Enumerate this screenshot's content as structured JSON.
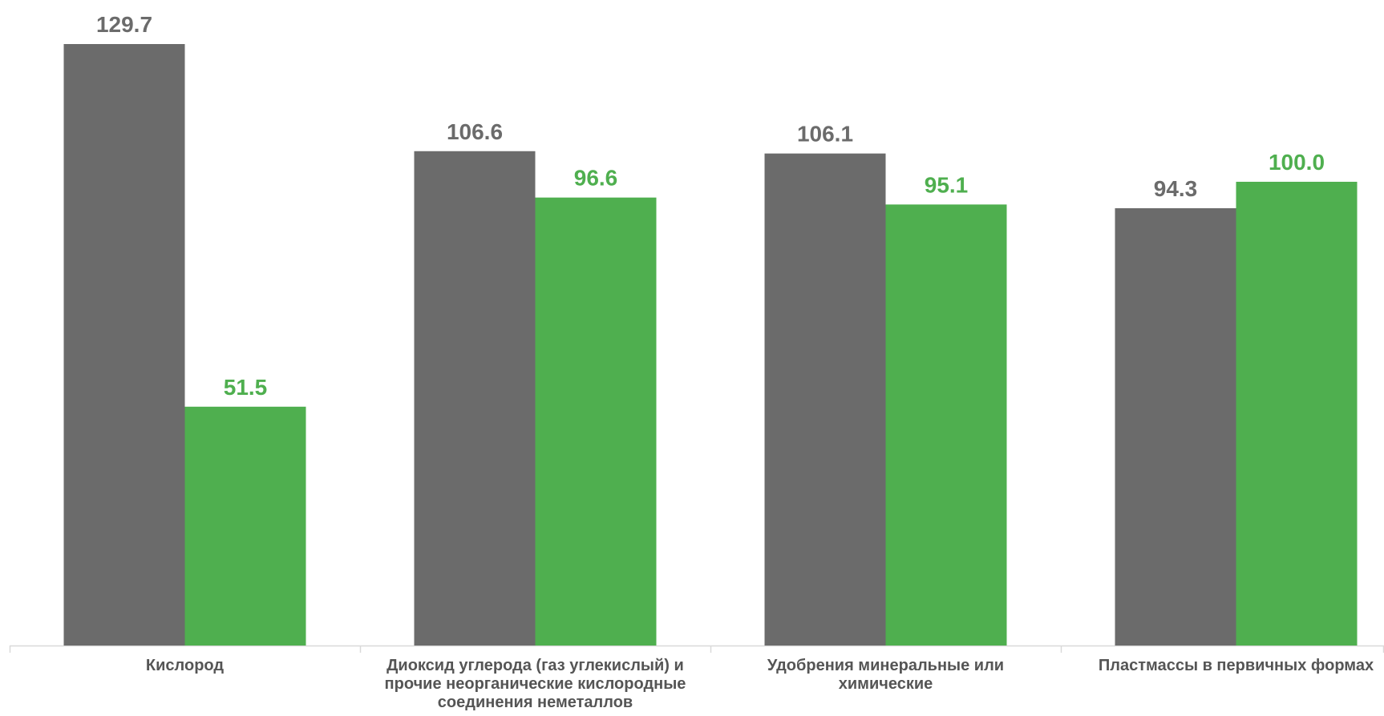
{
  "chart_data": {
    "type": "bar",
    "categories": [
      "Кислород",
      "Диоксид углерода (газ углекислый) и прочие неорганические кислородные соединения неметаллов",
      "Удобрения минеральные или химические",
      "Пластмассы в первичных формах"
    ],
    "category_lines": [
      [
        "Кислород"
      ],
      [
        "Диоксид углерода (газ углекислый) и",
        "прочие неорганические кислородные",
        "соединения неметаллов"
      ],
      [
        "Удобрения минеральные или",
        "химические"
      ],
      [
        "Пластмассы в первичных формах"
      ]
    ],
    "series": [
      {
        "values": [
          129.7,
          106.6,
          106.1,
          94.3
        ],
        "labels": [
          "129.7",
          "106.6",
          "106.1",
          "94.3"
        ],
        "color": "#6b6b6b"
      },
      {
        "values": [
          51.5,
          96.6,
          95.1,
          100.0
        ],
        "labels": [
          "51.5",
          "96.6",
          "95.1",
          "100.0"
        ],
        "color": "#4faf4f"
      }
    ],
    "ylim": [
      0,
      129.7
    ],
    "grid": false,
    "legend": "none",
    "axis_color": "#d9d9d9",
    "label_color": "#555555"
  }
}
